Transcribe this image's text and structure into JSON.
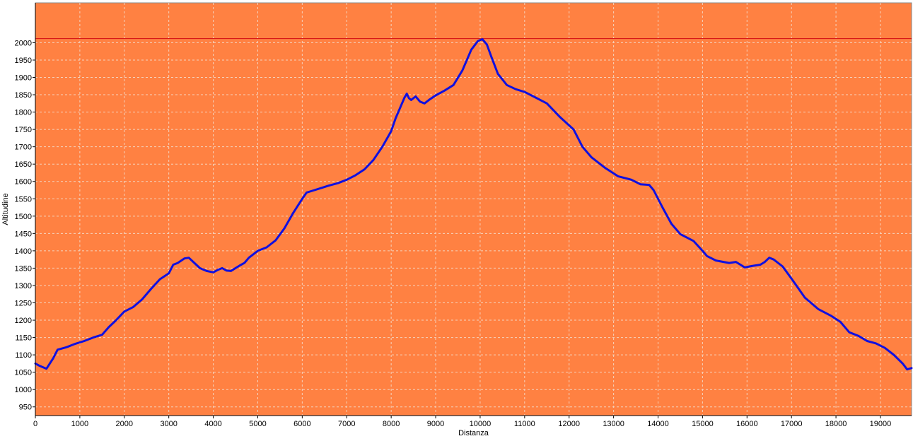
{
  "colors": {
    "plot_background": "#ff8142",
    "profile_line": "#1010e0",
    "max_line": "#d81818",
    "grid": "#f4d2bd"
  },
  "chart_data": {
    "type": "line",
    "title": "",
    "xlabel": "Distanza",
    "ylabel": "Altitudine",
    "xlim": [
      0,
      19700
    ],
    "ylim": [
      925,
      2115
    ],
    "x_ticks": [
      0,
      1000,
      2000,
      3000,
      4000,
      5000,
      6000,
      7000,
      8000,
      9000,
      10000,
      11000,
      12000,
      13000,
      14000,
      15000,
      16000,
      17000,
      18000,
      19000
    ],
    "y_ticks": [
      950,
      1000,
      1050,
      1100,
      1150,
      1200,
      1250,
      1300,
      1350,
      1400,
      1450,
      1500,
      1550,
      1600,
      1650,
      1700,
      1750,
      1800,
      1850,
      1900,
      1950,
      2000
    ],
    "grid": true,
    "legend": "none",
    "max_altitude_line": 2012,
    "series": [
      {
        "x": [
          0,
          100,
          250,
          400,
          500,
          700,
          900,
          1100,
          1300,
          1500,
          1650,
          1800,
          2000,
          2200,
          2400,
          2600,
          2800,
          3000,
          3100,
          3200,
          3350,
          3450,
          3550,
          3700,
          3850,
          4000,
          4100,
          4200,
          4300,
          4400,
          4500,
          4600,
          4700,
          4800,
          5000,
          5200,
          5400,
          5600,
          5800,
          6000,
          6100,
          6200,
          6400,
          6600,
          6800,
          7000,
          7200,
          7400,
          7600,
          7800,
          8000,
          8100,
          8200,
          8300,
          8350,
          8400,
          8450,
          8550,
          8650,
          8750,
          8850,
          9000,
          9200,
          9400,
          9600,
          9800,
          9950,
          10050,
          10150,
          10250,
          10400,
          10600,
          10800,
          11000,
          11200,
          11500,
          11800,
          12100,
          12300,
          12500,
          12800,
          13100,
          13400,
          13600,
          13800,
          13900,
          14100,
          14300,
          14500,
          14800,
          15000,
          15100,
          15300,
          15600,
          15750,
          15850,
          15950,
          16100,
          16300,
          16400,
          16500,
          16600,
          16800,
          17000,
          17300,
          17600,
          17900,
          18100,
          18300,
          18500,
          18700,
          18900,
          19100,
          19300,
          19500,
          19600,
          19700
        ],
        "y": [
          1075,
          1068,
          1060,
          1090,
          1115,
          1122,
          1132,
          1140,
          1150,
          1158,
          1180,
          1198,
          1225,
          1238,
          1260,
          1290,
          1318,
          1335,
          1360,
          1365,
          1378,
          1380,
          1368,
          1350,
          1342,
          1338,
          1345,
          1350,
          1343,
          1342,
          1350,
          1358,
          1365,
          1380,
          1400,
          1410,
          1430,
          1465,
          1510,
          1550,
          1568,
          1572,
          1580,
          1588,
          1595,
          1605,
          1618,
          1635,
          1662,
          1700,
          1745,
          1782,
          1812,
          1842,
          1853,
          1840,
          1835,
          1845,
          1830,
          1825,
          1835,
          1848,
          1862,
          1878,
          1920,
          1980,
          2005,
          2010,
          1995,
          1960,
          1910,
          1878,
          1866,
          1858,
          1845,
          1825,
          1785,
          1750,
          1700,
          1670,
          1640,
          1615,
          1605,
          1592,
          1590,
          1575,
          1525,
          1478,
          1448,
          1428,
          1400,
          1385,
          1372,
          1365,
          1368,
          1360,
          1352,
          1356,
          1360,
          1368,
          1380,
          1375,
          1355,
          1320,
          1265,
          1232,
          1212,
          1195,
          1165,
          1155,
          1140,
          1133,
          1120,
          1100,
          1075,
          1058,
          1062
        ]
      }
    ]
  }
}
